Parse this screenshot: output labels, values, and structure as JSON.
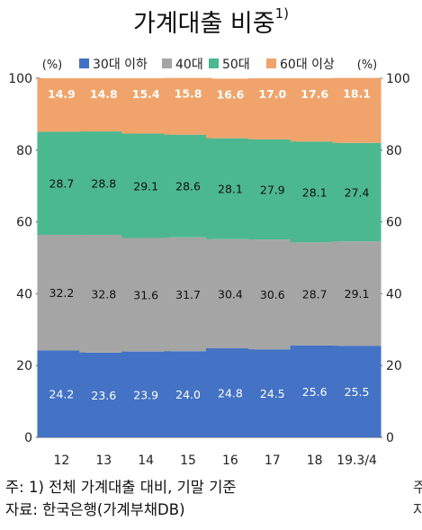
{
  "title": "가계대출 비중",
  "title_sup": "1)",
  "notes": {
    "note1": "주: 1) 전체 가계대출 대비, 기말 기준",
    "note2": "자료: 한국은행(가계부채DB)",
    "clip1": "주",
    "clip2": "자"
  },
  "chart_data": {
    "type": "bar",
    "stacked": true,
    "categories": [
      "12",
      "13",
      "14",
      "15",
      "16",
      "17",
      "18",
      "19.3/4"
    ],
    "series": [
      {
        "name": "30대 이하",
        "color": "#4472c4",
        "values": [
          24.2,
          23.6,
          23.9,
          24.0,
          24.8,
          24.5,
          25.6,
          25.5
        ]
      },
      {
        "name": "40대",
        "color": "#a5a5a5",
        "values": [
          32.2,
          32.8,
          31.6,
          31.7,
          30.4,
          30.6,
          28.7,
          29.1
        ]
      },
      {
        "name": "50대",
        "color": "#4cb890",
        "values": [
          28.7,
          28.8,
          29.1,
          28.6,
          28.1,
          27.9,
          28.1,
          27.4
        ]
      },
      {
        "name": "60대 이상",
        "color": "#f0a46b",
        "values": [
          14.9,
          14.8,
          15.4,
          15.8,
          16.6,
          17.0,
          17.6,
          18.1
        ]
      }
    ],
    "y_unit_left": "(%)",
    "y_unit_right": "(%)",
    "ylim": [
      0,
      100
    ],
    "yticks": [
      0,
      20,
      40,
      60,
      80,
      100
    ],
    "legend_position": "top",
    "grid": false
  }
}
